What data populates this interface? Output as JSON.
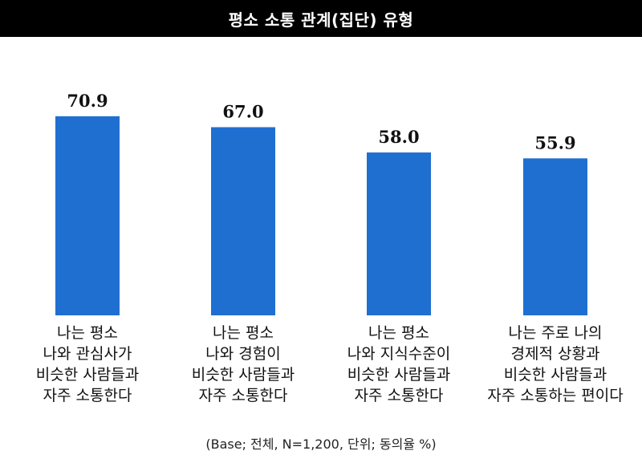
{
  "chart_data": {
    "type": "bar",
    "title": "평소 소통 관계(집단) 유형",
    "categories": [
      "나는 평소\n나와 관심사가\n비슷한 사람들과\n자주 소통한다",
      "나는 평소\n나와 경험이\n비슷한 사람들과\n자주 소통한다",
      "나는 평소\n나와 지식수준이\n비슷한 사람들과\n자주 소통한다",
      "나는 주로 나의\n경제적 상황과\n비슷한 사람들과\n자주 소통하는 편이다"
    ],
    "values": [
      70.9,
      67.0,
      58.0,
      55.9
    ],
    "value_labels": [
      "70.9",
      "67.0",
      "58.0",
      "55.9"
    ],
    "bar_color": "#1f6fd1",
    "ylim": [
      0,
      100
    ],
    "footnote": "(Base; 전체, N=1,200, 단위; 동의율 %)"
  }
}
